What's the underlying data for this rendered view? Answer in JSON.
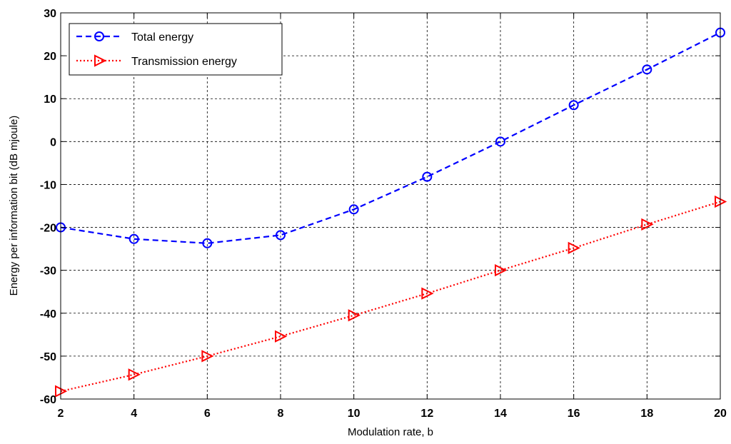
{
  "chart_data": {
    "type": "line",
    "xlabel": "Modulation rate, b",
    "ylabel": "Energy per information bit (dB mjoule)",
    "xlim": [
      2,
      20
    ],
    "ylim": [
      -60,
      30
    ],
    "xticks": [
      2,
      4,
      6,
      8,
      10,
      12,
      14,
      16,
      18,
      20
    ],
    "yticks": [
      30,
      20,
      10,
      0,
      -10,
      -20,
      -30,
      -40,
      -50,
      -60
    ],
    "grid": true,
    "legend_position": "top-left",
    "x": [
      2,
      4,
      6,
      8,
      10,
      12,
      14,
      16,
      18,
      20
    ],
    "series": [
      {
        "name": "Total energy",
        "values": [
          -20,
          -22.7,
          -23.7,
          -21.8,
          -15.8,
          -8.2,
          0,
          8.5,
          16.8,
          25.4
        ],
        "color": "#0000ff",
        "marker": "circle",
        "dash": "dashed"
      },
      {
        "name": "Transmission energy",
        "values": [
          -58.2,
          -54.3,
          -50,
          -45.4,
          -40.5,
          -35.4,
          -30,
          -24.8,
          -19.3,
          -14
        ],
        "color": "#ff0000",
        "marker": "triangle-right",
        "dash": "dotted"
      }
    ]
  }
}
